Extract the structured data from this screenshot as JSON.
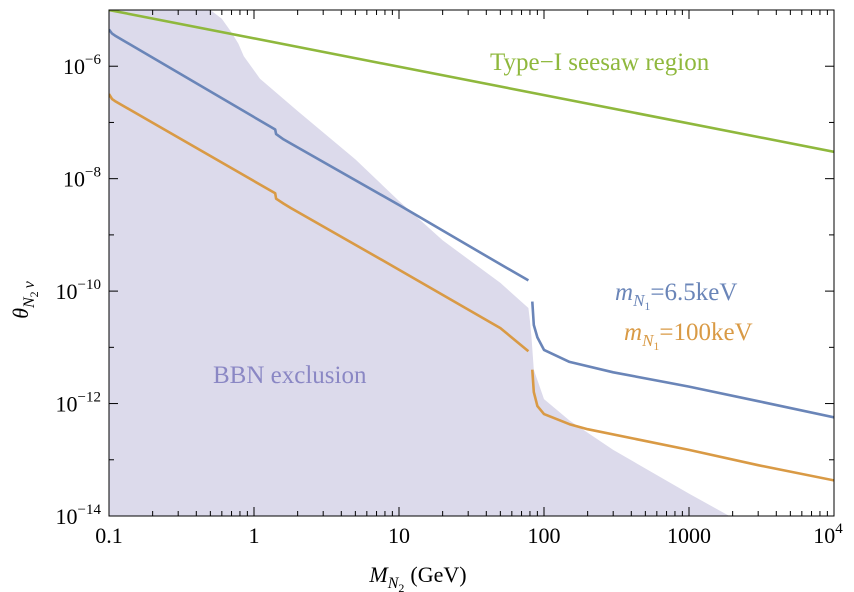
{
  "chart_data": {
    "type": "line",
    "title": "",
    "xlabel": {
      "symbol": "M",
      "subscript": "N",
      "subsub": "2",
      "unit": "(GeV)"
    },
    "ylabel": {
      "symbol": "θ",
      "subscript": "N",
      "subsub": "2",
      "tail": "ν"
    },
    "xscale": "log",
    "yscale": "log",
    "xlim": [
      0.1,
      10000
    ],
    "ylim": [
      1e-14,
      1e-05
    ],
    "x_ticks": [
      {
        "value": 0.1,
        "label": "0.1"
      },
      {
        "value": 1,
        "label": "1"
      },
      {
        "value": 10,
        "label": "10"
      },
      {
        "value": 100,
        "label": "100"
      },
      {
        "value": 1000,
        "label": "1000"
      },
      {
        "value": 10000,
        "label": "10",
        "sup": "4"
      }
    ],
    "y_ticks": [
      {
        "value": 1e-14,
        "label": "10",
        "sup": "−14"
      },
      {
        "value": 1e-12,
        "label": "10",
        "sup": "−12"
      },
      {
        "value": 1e-10,
        "label": "10",
        "sup": "−10"
      },
      {
        "value": 1e-08,
        "label": "10",
        "sup": "−8"
      },
      {
        "value": 1e-06,
        "label": "10",
        "sup": "−6"
      }
    ],
    "grid": false,
    "colors": {
      "bbn_fill": "#dcdaeb",
      "bbn_text": "#8a87c4",
      "seesaw": "#8fb83d",
      "blue": "#6a85b8",
      "orange": "#d99a45",
      "frame": "#000000"
    },
    "regions": [
      {
        "name": "BBN exclusion",
        "label": "BBN exclusion",
        "points": [
          [
            0.1,
            1e-05
          ],
          [
            0.5,
            1e-05
          ],
          [
            0.6,
            7e-06
          ],
          [
            0.7,
            4e-06
          ],
          [
            0.78,
            2.5e-06
          ],
          [
            0.85,
            1.5e-06
          ],
          [
            1.1,
            6e-07
          ],
          [
            2,
            1.6e-07
          ],
          [
            5,
            2.2e-08
          ],
          [
            10,
            4e-09
          ],
          [
            20,
            8e-10
          ],
          [
            50,
            1.4e-10
          ],
          [
            78,
            5e-11
          ],
          [
            80,
            3e-11
          ],
          [
            82,
            1.5e-11
          ],
          [
            85,
            4e-12
          ],
          [
            100,
            1.2e-12
          ],
          [
            150,
            5e-13
          ],
          [
            300,
            1.5e-13
          ],
          [
            1000,
            2.5e-14
          ],
          [
            1900,
            1e-14
          ],
          [
            0.1,
            1e-14
          ]
        ]
      }
    ],
    "series": [
      {
        "name": "seesaw",
        "label": "Type−I seesaw region",
        "values": [
          [
            0.1,
            1e-05
          ],
          [
            10000,
            3e-08
          ]
        ]
      },
      {
        "name": "blue",
        "label": {
          "m": "m",
          "sub": "N",
          "subsub": "1",
          "rest": "=6.5keV"
        },
        "segments": [
          [
            [
              0.1,
              4.5e-06
            ],
            [
              0.105,
              3.8e-06
            ],
            [
              0.11,
              3.5e-06
            ],
            [
              1.4,
              7.5e-08
            ],
            [
              1.42,
              6.2e-08
            ],
            [
              1.6,
              5e-08
            ],
            [
              1.8,
              4.2e-08
            ],
            [
              10,
              3.4e-09
            ],
            [
              50,
              3e-10
            ],
            [
              78,
              1.55e-10
            ]
          ],
          [
            [
              83,
              6.5e-11
            ],
            [
              85,
              2.5e-11
            ],
            [
              90,
              1.5e-11
            ],
            [
              100,
              9e-12
            ],
            [
              150,
              5.5e-12
            ],
            [
              300,
              3.6e-12
            ],
            [
              1000,
              2e-12
            ],
            [
              3000,
              1.1e-12
            ],
            [
              10000,
              5.7e-13
            ]
          ]
        ]
      },
      {
        "name": "orange",
        "label": {
          "m": "m",
          "sub": "N",
          "subsub": "1",
          "rest": "=100keV"
        },
        "segments": [
          [
            [
              0.1,
              3.2e-07
            ],
            [
              0.105,
              2.6e-07
            ],
            [
              0.11,
              2.4e-07
            ],
            [
              1.4,
              5.5e-09
            ],
            [
              1.42,
              4.4e-09
            ],
            [
              1.6,
              3.6e-09
            ],
            [
              1.8,
              3e-09
            ],
            [
              10,
              2.4e-10
            ],
            [
              50,
              2.2e-11
            ],
            [
              78,
              8.5e-12
            ]
          ],
          [
            [
              83,
              4e-12
            ],
            [
              85,
              1.6e-12
            ],
            [
              90,
              9e-13
            ],
            [
              100,
              6.5e-13
            ],
            [
              150,
              4.3e-13
            ],
            [
              200,
              3.5e-13
            ],
            [
              1000,
              1.5e-13
            ],
            [
              3000,
              8e-14
            ],
            [
              10000,
              4.3e-14
            ]
          ]
        ]
      }
    ]
  }
}
